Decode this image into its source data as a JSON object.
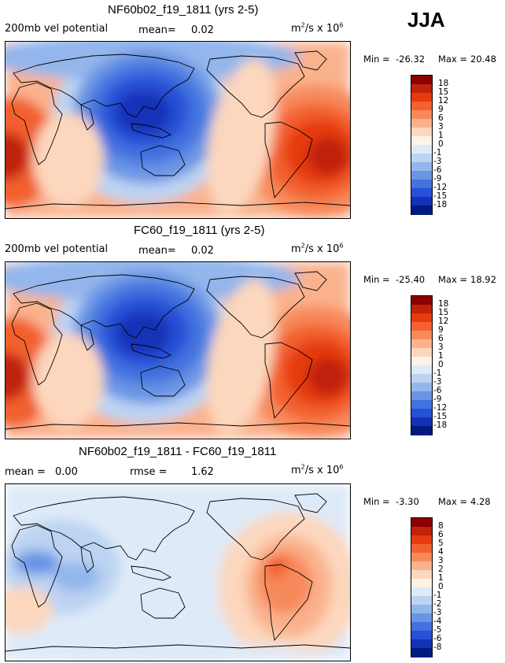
{
  "season": "JJA",
  "units": {
    "base": "m",
    "exp1": "2",
    "mid": "/s x 10",
    "exp2": "6"
  },
  "chart_data": [
    {
      "type": "heatmap",
      "title": "NF60b02_f19_1811 (yrs 2-5)",
      "field_label": "200mb vel potential",
      "stats": {
        "mean_label": "mean=",
        "mean_value": "0.02"
      },
      "min_label": "Min =",
      "min_value": "-26.32",
      "max_label": "Max =",
      "max_value": "20.48",
      "colorbar_levels": [
        "18",
        "15",
        "12",
        "9",
        "6",
        "3",
        "1",
        "0",
        "-1",
        "-3",
        "-6",
        "-9",
        "-12",
        "-15",
        "-18"
      ],
      "colorbar_colors": [
        "#8b0000",
        "#c0220a",
        "#e63a0f",
        "#f2612e",
        "#f78a5b",
        "#fab28d",
        "#fcd7bd",
        "#fff2e6",
        "#deeaf8",
        "#bcd3f2",
        "#93b6ec",
        "#6a95e5",
        "#4272df",
        "#2650d6",
        "#1332b8",
        "#001a80"
      ]
    },
    {
      "type": "heatmap",
      "title": "FC60_f19_1811 (yrs 2-5)",
      "field_label": "200mb vel potential",
      "stats": {
        "mean_label": "mean=",
        "mean_value": "0.02"
      },
      "min_label": "Min =",
      "min_value": "-25.40",
      "max_label": "Max =",
      "max_value": "18.92",
      "colorbar_levels": [
        "18",
        "15",
        "12",
        "9",
        "6",
        "3",
        "1",
        "0",
        "-1",
        "-3",
        "-6",
        "-9",
        "-12",
        "-15",
        "-18"
      ],
      "colorbar_colors": [
        "#8b0000",
        "#c0220a",
        "#e63a0f",
        "#f2612e",
        "#f78a5b",
        "#fab28d",
        "#fcd7bd",
        "#fff2e6",
        "#deeaf8",
        "#bcd3f2",
        "#93b6ec",
        "#6a95e5",
        "#4272df",
        "#2650d6",
        "#1332b8",
        "#001a80"
      ]
    },
    {
      "type": "heatmap",
      "title": "NF60b02_f19_1811 - FC60_f19_1811",
      "field_label": "",
      "stats": {
        "mean_label": "mean =",
        "mean_value": "0.00",
        "rmse_label": "rmse =",
        "rmse_value": "1.62"
      },
      "min_label": "Min =",
      "min_value": "-3.30",
      "max_label": "Max =",
      "max_value": "4.28",
      "colorbar_levels": [
        "8",
        "6",
        "5",
        "4",
        "3",
        "2",
        "1",
        "0",
        "-1",
        "-2",
        "-3",
        "-4",
        "-5",
        "-6",
        "-8"
      ],
      "colorbar_colors": [
        "#8b0000",
        "#c0220a",
        "#e63a0f",
        "#f2612e",
        "#f78a5b",
        "#fab28d",
        "#fcd7bd",
        "#fff2e6",
        "#deeaf8",
        "#bcd3f2",
        "#93b6ec",
        "#6a95e5",
        "#4272df",
        "#2650d6",
        "#1332b8",
        "#001a80"
      ]
    }
  ]
}
